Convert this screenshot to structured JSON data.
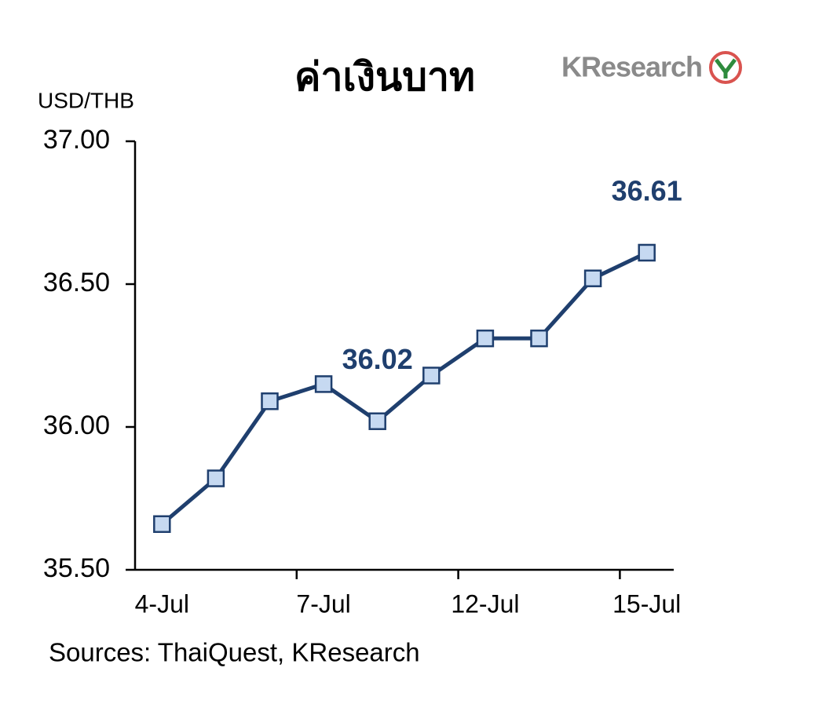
{
  "chart_data": {
    "type": "line",
    "title": "ค่าเงินบาท",
    "logo": "KResearch",
    "y_axis_label": "USD/THB",
    "source": "Sources: ThaiQuest, KResearch",
    "categories": [
      "4-Jul",
      null,
      null,
      "7-Jul",
      null,
      null,
      "12-Jul",
      null,
      null,
      "15-Jul"
    ],
    "series": [
      {
        "color": "#1f3f6e",
        "marker_color": "#c6d9f1",
        "values": [
          35.66,
          35.82,
          36.09,
          36.15,
          36.02,
          36.18,
          36.31,
          36.31,
          36.52,
          36.61
        ],
        "value_labels": [
          null,
          null,
          null,
          null,
          "36.02",
          null,
          null,
          null,
          null,
          "36.61"
        ]
      }
    ],
    "ylim": [
      35.5,
      37
    ],
    "yticks": [
      {
        "value": 35.5,
        "label": "35.50"
      },
      {
        "value": 36,
        "label": "36.00"
      },
      {
        "value": 36.5,
        "label": "36.50"
      },
      {
        "value": 37,
        "label": "37.00"
      }
    ],
    "grid": false
  }
}
